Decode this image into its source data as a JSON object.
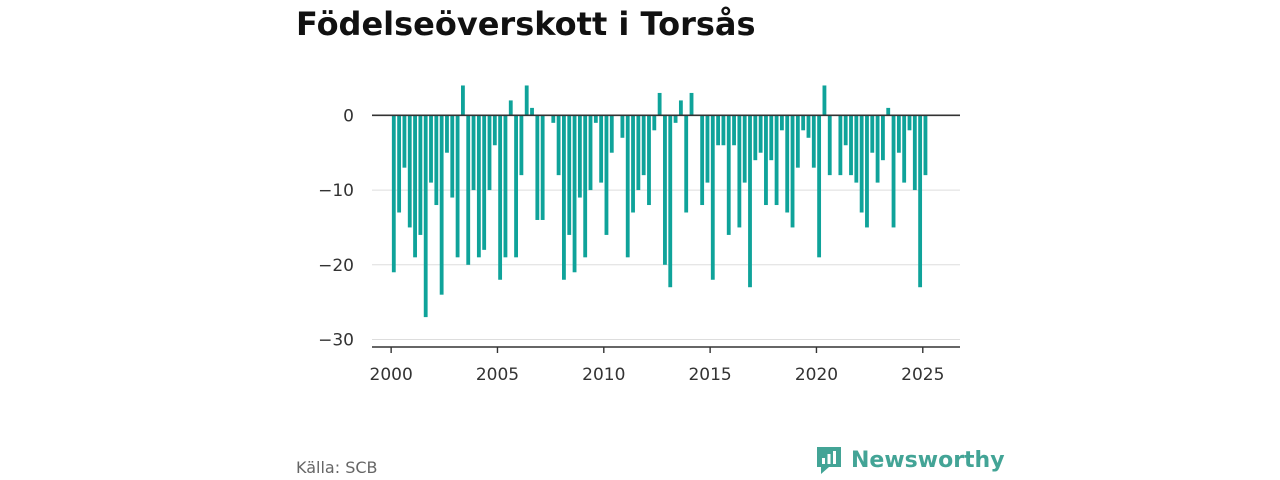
{
  "title": "Födelseöverskott i Torsås",
  "source": "Källa: SCB",
  "brand": {
    "name": "Newsworthy",
    "icon": "newsworthy-logo-icon",
    "color": "#43a496"
  },
  "chart_data": {
    "type": "bar",
    "title": "Födelseöverskott i Torsås",
    "xlabel": "",
    "ylabel": "",
    "bar_color": "#0fa39a",
    "ylim": [
      -31,
      5
    ],
    "yticks": [
      0,
      -10,
      -20,
      -30
    ],
    "ytick_labels": [
      "0",
      "−10",
      "−20",
      "−30"
    ],
    "xlim": [
      1999.1,
      2026.75
    ],
    "xticks": [
      2000,
      2005,
      2010,
      2015,
      2020,
      2025
    ],
    "ytick_grid": true,
    "x": [
      2000.125,
      2000.375,
      2000.625,
      2000.875,
      2001.125,
      2001.375,
      2001.625,
      2001.875,
      2002.125,
      2002.375,
      2002.625,
      2002.875,
      2003.125,
      2003.375,
      2003.625,
      2003.875,
      2004.125,
      2004.375,
      2004.625,
      2004.875,
      2005.125,
      2005.375,
      2005.625,
      2005.875,
      2006.125,
      2006.375,
      2006.625,
      2006.875,
      2007.125,
      2007.375,
      2007.625,
      2007.875,
      2008.125,
      2008.375,
      2008.625,
      2008.875,
      2009.125,
      2009.375,
      2009.625,
      2009.875,
      2010.125,
      2010.375,
      2010.625,
      2010.875,
      2011.125,
      2011.375,
      2011.625,
      2011.875,
      2012.125,
      2012.375,
      2012.625,
      2012.875,
      2013.125,
      2013.375,
      2013.625,
      2013.875,
      2014.125,
      2014.375,
      2014.625,
      2014.875,
      2015.125,
      2015.375,
      2015.625,
      2015.875,
      2016.125,
      2016.375,
      2016.625,
      2016.875,
      2017.125,
      2017.375,
      2017.625,
      2017.875,
      2018.125,
      2018.375,
      2018.625,
      2018.875,
      2019.125,
      2019.375,
      2019.625,
      2019.875,
      2020.125,
      2020.375,
      2020.625,
      2020.875,
      2021.125,
      2021.375,
      2021.625,
      2021.875,
      2022.125,
      2022.375,
      2022.625,
      2022.875,
      2023.125,
      2023.375,
      2023.625,
      2023.875,
      2024.125,
      2024.375,
      2024.625,
      2024.875,
      2025.125,
      2025.375
    ],
    "values": [
      -21,
      -13,
      -7,
      -15,
      -19,
      -16,
      -27,
      -9,
      -12,
      -24,
      -5,
      -11,
      -19,
      4,
      -20,
      -10,
      -19,
      -18,
      -10,
      -4,
      -22,
      -19,
      2,
      -19,
      -8,
      4,
      1,
      -14,
      -14,
      0,
      -1,
      -8,
      -22,
      -16,
      -21,
      -11,
      -19,
      -10,
      -1,
      -9,
      -16,
      -5,
      0,
      -3,
      -19,
      -13,
      -10,
      -8,
      -12,
      -2,
      3,
      -20,
      -23,
      -1,
      2,
      -13,
      3,
      0,
      -12,
      -9,
      -22,
      -4,
      -4,
      -16,
      -4,
      -15,
      -9,
      -23,
      -6,
      -5,
      -12,
      -6,
      -12,
      -2,
      -13,
      -15,
      -7,
      -2,
      -3,
      -7,
      -19,
      4,
      -8,
      0,
      -8,
      -4,
      -8,
      -9,
      -13,
      -15,
      -5,
      -9,
      -6,
      1,
      -15,
      -5,
      -9,
      -2,
      -10,
      -23,
      -8,
      0
    ]
  }
}
